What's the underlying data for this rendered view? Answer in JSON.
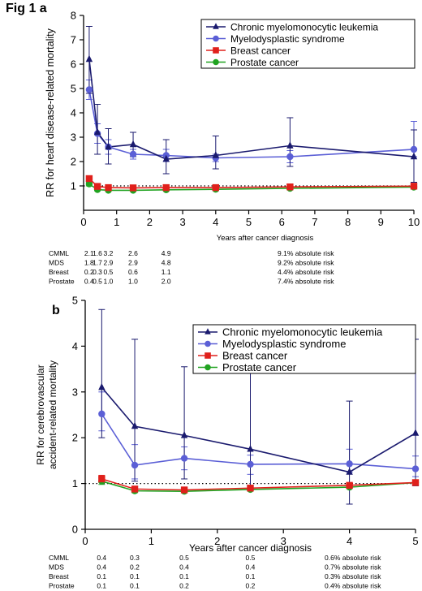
{
  "figure_label": "Fig 1",
  "chart_data": [
    {
      "panel": "a",
      "type": "line",
      "ylabel": "RR for heart disease-related mortality",
      "xlabel": "Years after cancer diagnosis",
      "xlim": [
        0,
        10
      ],
      "ylim": [
        0,
        8
      ],
      "x_ticks": [
        0,
        1,
        2,
        3,
        4,
        5,
        6,
        7,
        8,
        9,
        10
      ],
      "y_ticks": [
        1,
        2,
        3,
        4,
        5,
        6,
        7,
        8
      ],
      "reference_line": 1,
      "legend_position": "top-right",
      "series": [
        {
          "name": "Chronic myelomonocytic leukemia",
          "color": "#1a1a6e",
          "marker": "triangle",
          "x": [
            0.17,
            0.42,
            0.75,
            1.5,
            2.5,
            4,
            6.25,
            10
          ],
          "y": [
            6.2,
            3.2,
            2.6,
            2.7,
            2.1,
            2.25,
            2.65,
            2.2
          ],
          "ci_low": [
            4.8,
            2.3,
            1.9,
            2.2,
            1.5,
            1.7,
            1.8,
            1.15
          ],
          "ci_high": [
            7.55,
            4.35,
            3.35,
            3.2,
            2.9,
            3.05,
            3.8,
            3.3
          ]
        },
        {
          "name": "Myelodysplastic syndrome",
          "color": "#5b5fd6",
          "marker": "circle",
          "x": [
            0.17,
            0.42,
            0.75,
            1.5,
            2.5,
            4,
            6.25,
            10
          ],
          "y": [
            4.95,
            3.15,
            2.6,
            2.3,
            2.25,
            2.15,
            2.2,
            2.5
          ],
          "ci_low": [
            4.55,
            2.75,
            2.3,
            2.1,
            2.0,
            2.0,
            1.95,
            2.2
          ],
          "ci_high": [
            5.35,
            3.55,
            2.9,
            2.5,
            2.5,
            2.3,
            2.45,
            3.65
          ]
        },
        {
          "name": "Breast cancer",
          "color": "#e0201b",
          "marker": "square",
          "x": [
            0.17,
            0.42,
            0.75,
            1.5,
            2.5,
            4,
            6.25,
            10
          ],
          "y": [
            1.3,
            0.98,
            0.93,
            0.92,
            0.93,
            0.93,
            0.96,
            0.99
          ],
          "ci_low": [
            1.2,
            0.9,
            0.88,
            0.88,
            0.9,
            0.9,
            0.93,
            0.95
          ],
          "ci_high": [
            1.4,
            1.06,
            0.98,
            0.96,
            0.96,
            0.96,
            0.99,
            1.03
          ]
        },
        {
          "name": "Prostate cancer",
          "color": "#21a321",
          "marker": "circle",
          "x": [
            0.17,
            0.42,
            0.75,
            1.5,
            2.5,
            4,
            6.25,
            10
          ],
          "y": [
            1.08,
            0.85,
            0.82,
            0.82,
            0.84,
            0.86,
            0.9,
            0.95
          ],
          "ci_low": [
            1.0,
            0.8,
            0.78,
            0.79,
            0.81,
            0.83,
            0.87,
            0.91
          ],
          "ci_high": [
            1.16,
            0.9,
            0.86,
            0.85,
            0.87,
            0.89,
            0.93,
            0.99
          ]
        }
      ],
      "table": {
        "positions": [
          0.17,
          0.42,
          0.75,
          1.5,
          2.5,
          4,
          6.25
        ],
        "rows": [
          {
            "label": "CMML",
            "values": [
              "2.1",
              "1.6",
              "3.2",
              "2.6",
              "4.9"
            ],
            "risk": "9.1% absolute risk"
          },
          {
            "label": "MDS",
            "values": [
              "1.8",
              "1.7",
              "2.9",
              "2.9",
              "4.8"
            ],
            "risk": "9.2% absolute risk"
          },
          {
            "label": "Breast",
            "values": [
              "0.2",
              "0.3",
              "0.5",
              "0.6",
              "1.1"
            ],
            "risk": "4.4% absolute risk"
          },
          {
            "label": "Prostate",
            "values": [
              "0.4",
              "0.5",
              "1.0",
              "1.0",
              "2.0"
            ],
            "risk": "7.4% absolute risk"
          }
        ]
      }
    },
    {
      "panel": "b",
      "type": "line",
      "ylabel": "RR for cerebrovascular accident-related mortality",
      "ylabel_lines": [
        "RR for cerebrovascular",
        "accident-related mortality"
      ],
      "xlabel": "Years after cancer diagnosis",
      "xlim": [
        0,
        5
      ],
      "ylim": [
        0,
        5
      ],
      "x_ticks": [
        0,
        1,
        2,
        3,
        4,
        5
      ],
      "y_ticks": [
        0,
        1,
        2,
        3,
        4,
        5
      ],
      "reference_line": 1,
      "legend_position": "top-right",
      "series": [
        {
          "name": "Chronic myelomonocytic leukemia",
          "color": "#1a1a6e",
          "marker": "triangle",
          "x": [
            0.25,
            0.75,
            1.5,
            2.5,
            4,
            5
          ],
          "y": [
            3.1,
            2.25,
            2.05,
            1.75,
            1.25,
            2.1
          ],
          "ci_low": [
            2.0,
            1.05,
            1.1,
            0.85,
            0.55,
            0.95
          ],
          "ci_high": [
            4.8,
            4.15,
            3.55,
            3.6,
            2.8,
            4.15
          ]
        },
        {
          "name": "Myelodysplastic syndrome",
          "color": "#5b5fd6",
          "marker": "circle",
          "x": [
            0.25,
            0.75,
            1.5,
            2.5,
            4,
            5
          ],
          "y": [
            2.52,
            1.4,
            1.55,
            1.42,
            1.43,
            1.32
          ],
          "ci_low": [
            2.15,
            1.1,
            1.3,
            1.2,
            1.25,
            1.15
          ],
          "ci_high": [
            3.0,
            1.85,
            1.8,
            1.62,
            1.75,
            1.6
          ]
        },
        {
          "name": "Breast cancer",
          "color": "#e0201b",
          "marker": "square",
          "x": [
            0.25,
            0.75,
            1.5,
            2.5,
            4,
            5
          ],
          "y": [
            1.1,
            0.88,
            0.86,
            0.9,
            0.96,
            1.02
          ],
          "ci_low": [
            1.02,
            0.83,
            0.82,
            0.86,
            0.92,
            0.97
          ],
          "ci_high": [
            1.18,
            0.93,
            0.9,
            0.94,
            1.0,
            1.07
          ]
        },
        {
          "name": "Prostate cancer",
          "color": "#21a321",
          "marker": "circle",
          "x": [
            0.25,
            0.75,
            1.5,
            2.5,
            4,
            5
          ],
          "y": [
            1.05,
            0.84,
            0.83,
            0.87,
            0.92,
            1.02
          ],
          "ci_low": [
            0.98,
            0.8,
            0.8,
            0.84,
            0.89,
            0.98
          ],
          "ci_high": [
            1.12,
            0.88,
            0.86,
            0.9,
            0.95,
            1.06
          ]
        }
      ],
      "table": {
        "positions": [
          0.25,
          0.75,
          1.5,
          2.5,
          4
        ],
        "rows": [
          {
            "label": "CMML",
            "values": [
              "0.4",
              "0.3",
              "0.5",
              "0.5"
            ],
            "risk": "0.6% absolute risk"
          },
          {
            "label": "MDS",
            "values": [
              "0.4",
              "0.2",
              "0.4",
              "0.4"
            ],
            "risk": "0.7% absolute risk"
          },
          {
            "label": "Breast",
            "values": [
              "0.1",
              "0.1",
              "0.1",
              "0.1"
            ],
            "risk": "0.3% absolute risk"
          },
          {
            "label": "Prostate",
            "values": [
              "0.1",
              "0.1",
              "0.2",
              "0.2"
            ],
            "risk": "0.4% absolute risk"
          }
        ]
      }
    }
  ]
}
